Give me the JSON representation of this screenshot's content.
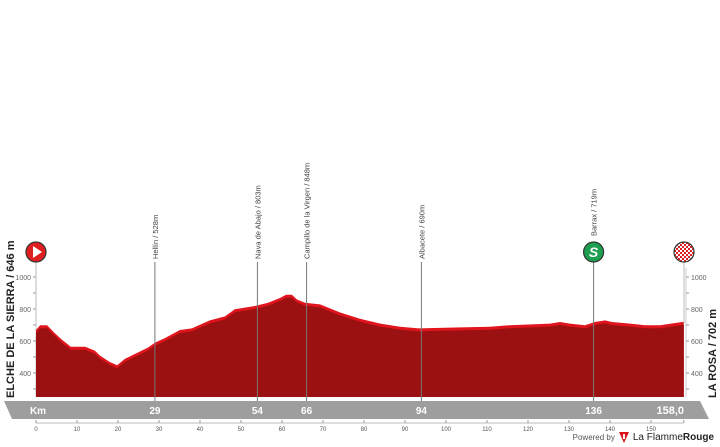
{
  "chart_data": {
    "type": "area",
    "title": "",
    "xlabel": "Km",
    "ylabel": "",
    "xlim": [
      0,
      158
    ],
    "ylim": [
      250,
      1100
    ],
    "x_ticks": [
      0,
      10,
      20,
      30,
      40,
      50,
      60,
      70,
      80,
      90,
      100,
      110,
      120,
      130,
      140,
      150
    ],
    "y_ticks": [
      400,
      600,
      800,
      1000
    ],
    "grid": false,
    "profile": {
      "km": [
        0,
        1,
        2.7,
        4.6,
        6.3,
        8.5,
        10,
        12,
        14.4,
        15.6,
        18,
        19.8,
        21.7,
        24.1,
        27.3,
        29,
        31.5,
        35.1,
        38,
        42.4,
        46.1,
        48.5,
        53.4,
        56.6,
        59.5,
        61,
        62.4,
        63.7,
        65.6,
        69.3,
        74.1,
        79,
        84,
        88.8,
        93.4,
        100.9,
        110.7,
        115.6,
        125.4,
        127.8,
        130.2,
        133.9,
        136.3,
        138.8,
        140.5,
        144.9,
        148.5,
        152.2,
        158
      ],
      "elevation": [
        650,
        680,
        680,
        630,
        590,
        545,
        545,
        545,
        520,
        490,
        450,
        430,
        470,
        500,
        540,
        570,
        600,
        650,
        660,
        710,
        735,
        780,
        800,
        820,
        850,
        870,
        870,
        840,
        820,
        810,
        760,
        720,
        690,
        670,
        660,
        665,
        670,
        680,
        690,
        700,
        690,
        680,
        700,
        710,
        700,
        690,
        680,
        680,
        702
      ]
    },
    "start": {
      "name": "ELCHE DE LA SIERRA",
      "elevation_m": 646,
      "label": "ELCHE DE LA SIERRA / 646 m"
    },
    "finish": {
      "name": "LA ROSA",
      "elevation_m": 702,
      "label": "LA ROSA / 702 m",
      "distance_label": "158,0"
    },
    "waypoints": [
      {
        "km": 29,
        "label": "Hellín / 528m",
        "km_label": "29"
      },
      {
        "km": 54,
        "label": "Nava de Abajo / 803m",
        "km_label": "54"
      },
      {
        "km": 66,
        "label": "Campillo de la Virgen / 848m",
        "km_label": "66"
      },
      {
        "km": 94,
        "label": "Albacete / 690m",
        "km_label": "94"
      },
      {
        "km": 136,
        "label": "Barrax / 719m",
        "km_label": "136",
        "sprint": true
      }
    ],
    "colors": {
      "fill": "#9b1111",
      "highlight": "#e0141c",
      "bar": "#9e9e9e",
      "sprint": "#1e9e4f",
      "start": "#e02020"
    }
  },
  "labels": {
    "km": "Km",
    "sprint_letter": "S",
    "powered_by": "Powered by",
    "brand_a": "La Flamme",
    "brand_b": "Rouge"
  }
}
